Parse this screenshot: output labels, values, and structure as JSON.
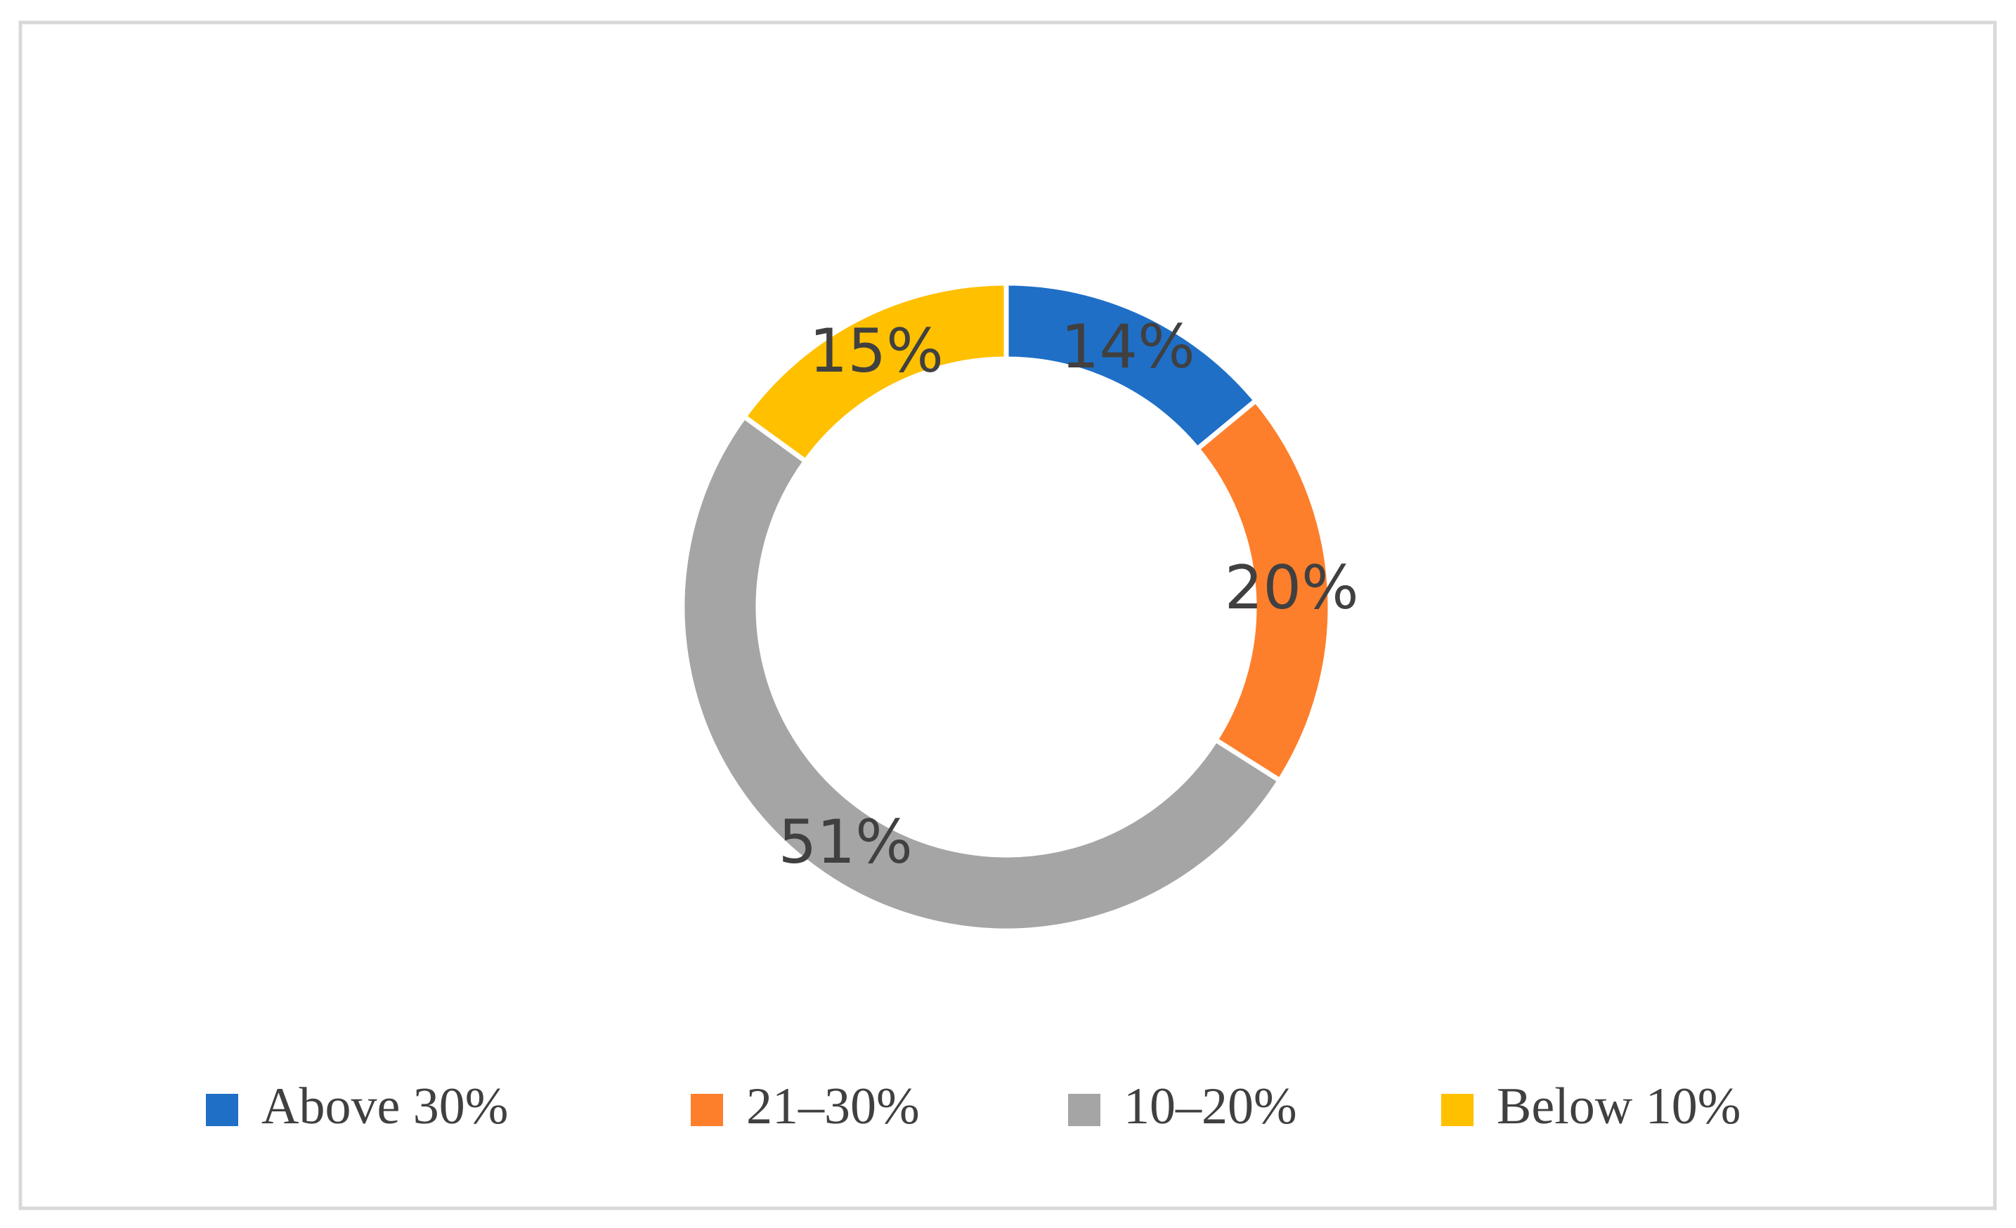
{
  "chart_data": {
    "type": "donut",
    "categories": [
      "Above 30%",
      "21–30%",
      "10–20%",
      "Below 10%"
    ],
    "values": [
      14,
      20,
      51,
      15
    ],
    "value_labels": [
      "14%",
      "20%",
      "51%",
      "15%"
    ],
    "colors": [
      "#1f6fc6",
      "#fd7f2c",
      "#a5a5a5",
      "#ffc000"
    ],
    "legend": "bottom"
  }
}
